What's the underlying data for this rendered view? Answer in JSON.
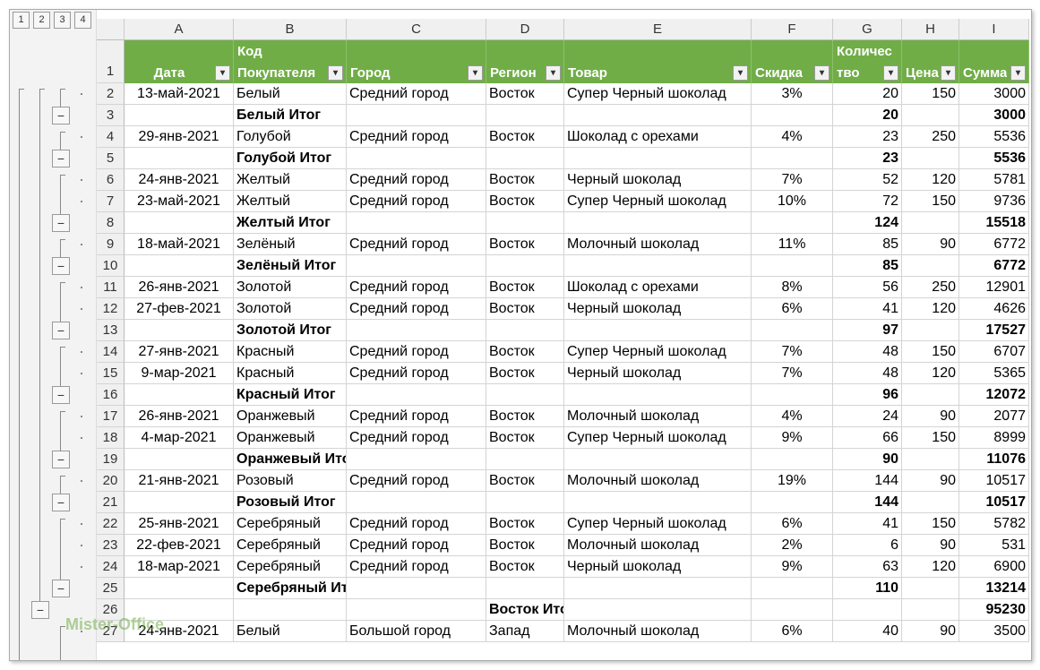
{
  "outline_levels": [
    "1",
    "2",
    "3",
    "4"
  ],
  "table": {
    "columns": [
      "A",
      "B",
      "C",
      "D",
      "E",
      "F",
      "G",
      "H",
      "I"
    ],
    "header_row": "1",
    "header": [
      [
        "Дата"
      ],
      [
        "Код",
        "Покупателя"
      ],
      [
        "Город"
      ],
      [
        "Регион"
      ],
      [
        "Товар"
      ],
      [
        "Скидка"
      ],
      [
        "Количес",
        "тво"
      ],
      [
        "Цена"
      ],
      [
        "Сумма"
      ]
    ],
    "rows": [
      {
        "n": "2",
        "cells": [
          "13-май-2021",
          "Белый",
          "Средний город",
          "Восток",
          "Супер Черный шоколад",
          "3%",
          20,
          150,
          3000
        ]
      },
      {
        "n": "3",
        "cells": [
          null,
          "Белый Итог",
          null,
          null,
          null,
          null,
          20,
          null,
          3000
        ]
      },
      {
        "n": "4",
        "cells": [
          "29-янв-2021",
          "Голубой",
          "Средний город",
          "Восток",
          "Шоколад с орехами",
          "4%",
          23,
          250,
          5536
        ]
      },
      {
        "n": "5",
        "cells": [
          null,
          "Голубой Итог",
          null,
          null,
          null,
          null,
          23,
          null,
          5536
        ]
      },
      {
        "n": "6",
        "cells": [
          "24-янв-2021",
          "Желтый",
          "Средний город",
          "Восток",
          "Черный шоколад",
          "7%",
          52,
          120,
          5781
        ]
      },
      {
        "n": "7",
        "cells": [
          "23-май-2021",
          "Желтый",
          "Средний город",
          "Восток",
          "Супер Черный шоколад",
          "10%",
          72,
          150,
          9736
        ]
      },
      {
        "n": "8",
        "cells": [
          null,
          "Желтый Итог",
          null,
          null,
          null,
          null,
          124,
          null,
          15518
        ]
      },
      {
        "n": "9",
        "cells": [
          "18-май-2021",
          "Зелёный",
          "Средний город",
          "Восток",
          "Молочный шоколад",
          "11%",
          85,
          90,
          6772
        ]
      },
      {
        "n": "10",
        "cells": [
          null,
          "Зелёный Итог",
          null,
          null,
          null,
          null,
          85,
          null,
          6772
        ]
      },
      {
        "n": "11",
        "cells": [
          "26-янв-2021",
          "Золотой",
          "Средний город",
          "Восток",
          "Шоколад с орехами",
          "8%",
          56,
          250,
          12901
        ]
      },
      {
        "n": "12",
        "cells": [
          "27-фев-2021",
          "Золотой",
          "Средний город",
          "Восток",
          "Черный шоколад",
          "6%",
          41,
          120,
          4626
        ]
      },
      {
        "n": "13",
        "cells": [
          null,
          "Золотой Итог",
          null,
          null,
          null,
          null,
          97,
          null,
          17527
        ]
      },
      {
        "n": "14",
        "cells": [
          "27-янв-2021",
          "Красный",
          "Средний город",
          "Восток",
          "Супер Черный шоколад",
          "7%",
          48,
          150,
          6707
        ]
      },
      {
        "n": "15",
        "cells": [
          "9-мар-2021",
          "Красный",
          "Средний город",
          "Восток",
          "Черный шоколад",
          "7%",
          48,
          120,
          5365
        ]
      },
      {
        "n": "16",
        "cells": [
          null,
          "Красный Итог",
          null,
          null,
          null,
          null,
          96,
          null,
          12072
        ]
      },
      {
        "n": "17",
        "cells": [
          "26-янв-2021",
          "Оранжевый",
          "Средний город",
          "Восток",
          "Молочный шоколад",
          "4%",
          24,
          90,
          2077
        ]
      },
      {
        "n": "18",
        "cells": [
          "4-мар-2021",
          "Оранжевый",
          "Средний город",
          "Восток",
          "Супер Черный шоколад",
          "9%",
          66,
          150,
          8999
        ]
      },
      {
        "n": "19",
        "cells": [
          null,
          "Оранжевый Итог",
          null,
          null,
          null,
          null,
          90,
          null,
          11076
        ]
      },
      {
        "n": "20",
        "cells": [
          "21-янв-2021",
          "Розовый",
          "Средний город",
          "Восток",
          "Молочный шоколад",
          "19%",
          144,
          90,
          10517
        ]
      },
      {
        "n": "21",
        "cells": [
          null,
          "Розовый Итог",
          null,
          null,
          null,
          null,
          144,
          null,
          10517
        ]
      },
      {
        "n": "22",
        "cells": [
          "25-янв-2021",
          "Серебряный",
          "Средний город",
          "Восток",
          "Супер Черный шоколад",
          "6%",
          41,
          150,
          5782
        ]
      },
      {
        "n": "23",
        "cells": [
          "22-фев-2021",
          "Серебряный",
          "Средний город",
          "Восток",
          "Молочный шоколад",
          "2%",
          6,
          90,
          531
        ]
      },
      {
        "n": "24",
        "cells": [
          "18-мар-2021",
          "Серебряный",
          "Средний город",
          "Восток",
          "Черный шоколад",
          "9%",
          63,
          120,
          6900
        ]
      },
      {
        "n": "25",
        "cells": [
          null,
          "Серебряный Итог",
          null,
          null,
          null,
          null,
          110,
          null,
          13214
        ]
      },
      {
        "n": "26",
        "cells": [
          null,
          null,
          null,
          "Восток Итог",
          null,
          null,
          null,
          null,
          95230
        ]
      },
      {
        "n": "27",
        "cells": [
          "24-янв-2021",
          "Белый",
          "Большой город",
          "Запад",
          "Молочный шоколад",
          "6%",
          40,
          90,
          3500
        ]
      }
    ]
  },
  "watermark": "Mister-Office"
}
